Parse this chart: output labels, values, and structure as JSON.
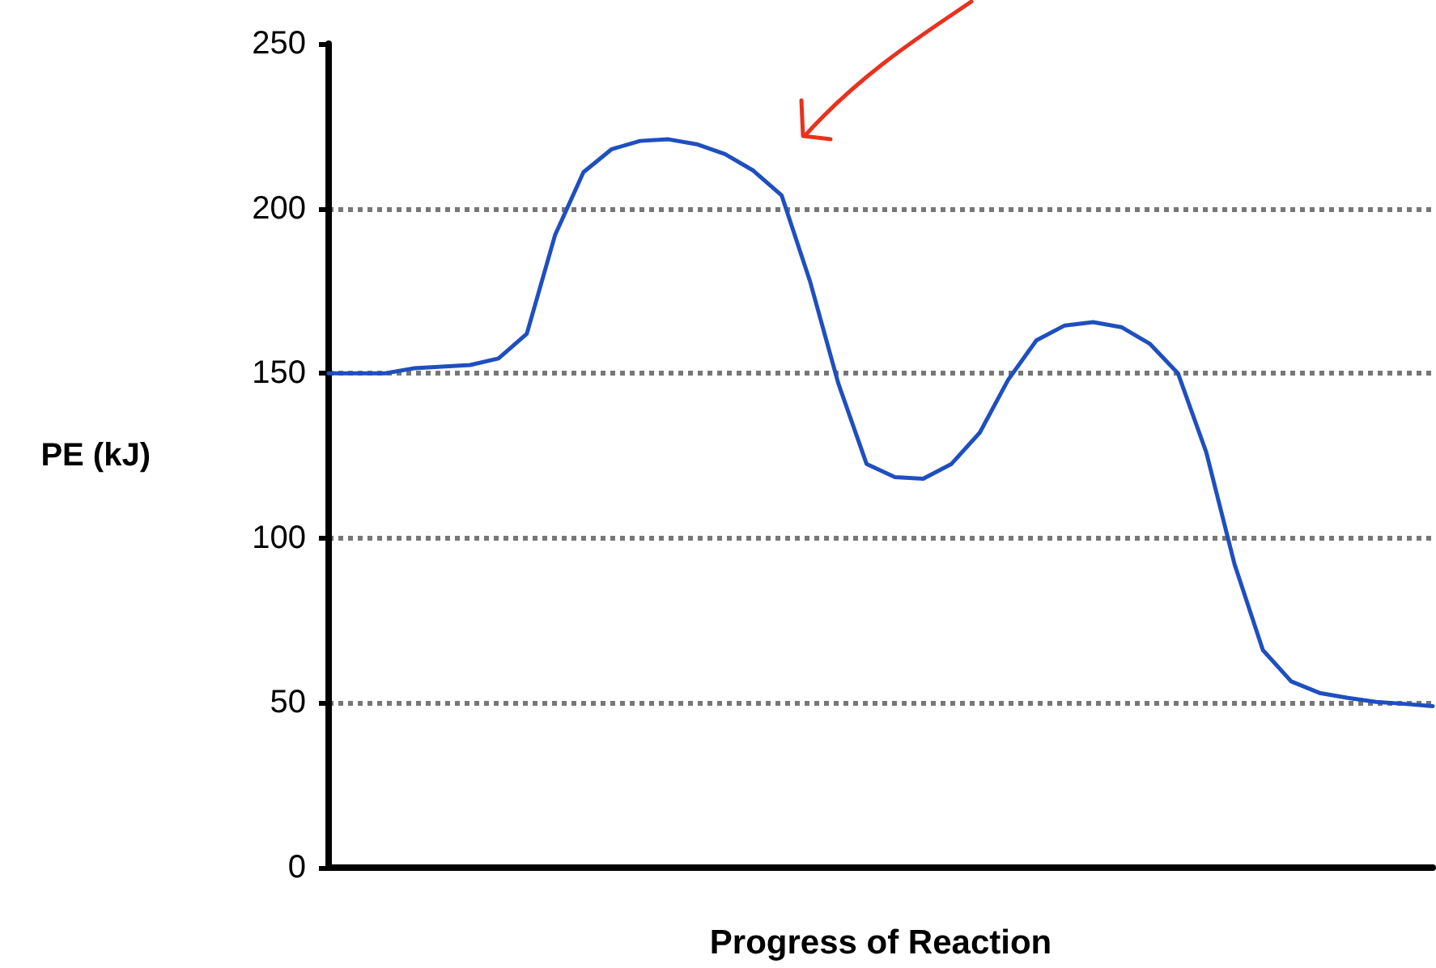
{
  "chart_data": {
    "type": "line",
    "xlabel": "Progress of Reaction",
    "ylabel": "PE (kJ)",
    "categories": [
      null,
      null,
      null,
      null,
      null,
      null,
      null,
      null,
      null,
      null,
      null,
      null,
      null,
      null,
      null,
      null,
      null,
      null,
      null,
      null,
      null,
      null,
      null,
      null,
      null,
      null,
      null,
      null,
      null,
      null,
      null,
      null,
      null,
      null,
      null,
      null,
      null,
      null,
      null,
      null
    ],
    "series": [
      {
        "color": "#1f4fbf",
        "values": [
          150,
          150,
          150,
          151.5,
          152,
          152.5,
          154.5,
          162,
          192,
          211,
          218,
          220.5,
          221,
          219.5,
          216.5,
          211.5,
          204,
          178,
          147,
          122.5,
          118.5,
          118,
          122.5,
          132,
          148,
          160,
          164.5,
          165.5,
          164,
          159,
          150,
          126,
          92,
          66,
          56.5,
          53,
          51.5,
          50.3,
          49.7,
          49
        ]
      }
    ],
    "ylim": [
      0,
      250
    ],
    "yticks": [
      0,
      50,
      100,
      150,
      200,
      250
    ],
    "grid": "y",
    "tick_labels": "y",
    "marker": "none",
    "line_style": "solid"
  }
}
